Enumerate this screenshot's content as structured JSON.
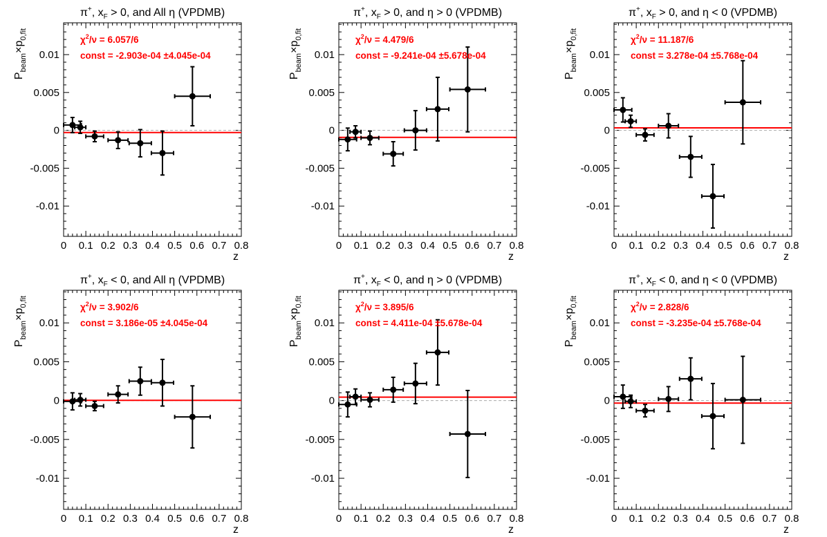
{
  "chart_data": [
    {
      "type": "scatter",
      "title": "π⁺, x_F > 0, and All  η (VPDMB)",
      "title_parts": {
        "pre": "π",
        "sup": "+",
        "mid": ", x",
        "sub": "F",
        "post": " > 0, and All  η (VPDMB)"
      },
      "xlabel": "z",
      "ylabel_parts": {
        "p1": "P",
        "s1": "beam",
        "p2": "×p",
        "s2": "0,fit"
      },
      "xlim": [
        0,
        0.8
      ],
      "ylim": [
        -0.014,
        0.0142
      ],
      "xticks": [
        "0",
        "0.1",
        "0.2",
        "0.3",
        "0.4",
        "0.5",
        "0.6",
        "0.7",
        "0.8"
      ],
      "yticks": [
        "0.01",
        "0.005",
        "0",
        "-0.005",
        "-0.01"
      ],
      "fit_text": {
        "chi2": "χ²/ν = 6.057/6",
        "chi_head": "χ",
        "chi_sup": "2",
        "chi_tail": "/ν = 6.057/6",
        "const": "const = -2.903e-04  ±4.045e-04"
      },
      "fit_const": -0.0002903,
      "points": [
        {
          "x": 0.04,
          "y": 0.0007,
          "xerr": 0.04,
          "yerr": 0.001
        },
        {
          "x": 0.075,
          "y": 0.0004,
          "xerr": 0.025,
          "yerr": 0.0008
        },
        {
          "x": 0.14,
          "y": -0.0008,
          "xerr": 0.04,
          "yerr": 0.0007
        },
        {
          "x": 0.245,
          "y": -0.0013,
          "xerr": 0.045,
          "yerr": 0.0011
        },
        {
          "x": 0.345,
          "y": -0.0017,
          "xerr": 0.05,
          "yerr": 0.0018
        },
        {
          "x": 0.445,
          "y": -0.003,
          "xerr": 0.05,
          "yerr": 0.0029
        },
        {
          "x": 0.58,
          "y": 0.0045,
          "xerr": 0.08,
          "yerr": 0.0039
        }
      ]
    },
    {
      "type": "scatter",
      "title": "π⁺, x_F > 0, and η > 0 (VPDMB)",
      "title_parts": {
        "pre": "π",
        "sup": "+",
        "mid": ", x",
        "sub": "F",
        "post": " > 0, and η > 0 (VPDMB)"
      },
      "xlabel": "z",
      "ylabel_parts": {
        "p1": "P",
        "s1": "beam",
        "p2": "×p",
        "s2": "0,fit"
      },
      "xlim": [
        0,
        0.8
      ],
      "ylim": [
        -0.014,
        0.0142
      ],
      "xticks": [
        "0",
        "0.1",
        "0.2",
        "0.3",
        "0.4",
        "0.5",
        "0.6",
        "0.7",
        "0.8"
      ],
      "yticks": [
        "0.01",
        "0.005",
        "0",
        "-0.005",
        "-0.01"
      ],
      "fit_text": {
        "chi2": "χ²/ν = 4.479/6",
        "chi_head": "χ",
        "chi_sup": "2",
        "chi_tail": "/ν = 4.479/6",
        "const": "const = -9.241e-04  ±5.678e-04"
      },
      "fit_const": -0.0009241,
      "points": [
        {
          "x": 0.04,
          "y": -0.0012,
          "xerr": 0.04,
          "yerr": 0.0015
        },
        {
          "x": 0.075,
          "y": -0.0002,
          "xerr": 0.025,
          "yerr": 0.0008
        },
        {
          "x": 0.14,
          "y": -0.001,
          "xerr": 0.04,
          "yerr": 0.0009
        },
        {
          "x": 0.245,
          "y": -0.0031,
          "xerr": 0.045,
          "yerr": 0.0016
        },
        {
          "x": 0.345,
          "y": 0.0,
          "xerr": 0.05,
          "yerr": 0.0026
        },
        {
          "x": 0.445,
          "y": 0.0028,
          "xerr": 0.05,
          "yerr": 0.0042
        },
        {
          "x": 0.58,
          "y": 0.0054,
          "xerr": 0.08,
          "yerr": 0.0056
        }
      ]
    },
    {
      "type": "scatter",
      "title": "π⁺, x_F > 0, and η < 0 (VPDMB)",
      "title_parts": {
        "pre": "π",
        "sup": "+",
        "mid": ", x",
        "sub": "F",
        "post": " > 0, and η < 0 (VPDMB)"
      },
      "xlabel": "z",
      "ylabel_parts": {
        "p1": "P",
        "s1": "beam",
        "p2": "×p",
        "s2": "0,fit"
      },
      "xlim": [
        0,
        0.8
      ],
      "ylim": [
        -0.014,
        0.0142
      ],
      "xticks": [
        "0",
        "0.1",
        "0.2",
        "0.3",
        "0.4",
        "0.5",
        "0.6",
        "0.7",
        "0.8"
      ],
      "yticks": [
        "0.01",
        "0.005",
        "0",
        "-0.005",
        "-0.01"
      ],
      "fit_text": {
        "chi2": "χ²/ν = 11.187/6",
        "chi_head": "χ",
        "chi_sup": "2",
        "chi_tail": "/ν = 11.187/6",
        "const": "const = 3.278e-04  ±5.768e-04"
      },
      "fit_const": 0.0003278,
      "points": [
        {
          "x": 0.04,
          "y": 0.0027,
          "xerr": 0.04,
          "yerr": 0.0016
        },
        {
          "x": 0.075,
          "y": 0.0012,
          "xerr": 0.025,
          "yerr": 0.0008
        },
        {
          "x": 0.14,
          "y": -0.0006,
          "xerr": 0.04,
          "yerr": 0.0008
        },
        {
          "x": 0.245,
          "y": 0.0006,
          "xerr": 0.045,
          "yerr": 0.0016
        },
        {
          "x": 0.345,
          "y": -0.0035,
          "xerr": 0.05,
          "yerr": 0.0027
        },
        {
          "x": 0.445,
          "y": -0.0087,
          "xerr": 0.05,
          "yerr": 0.0042
        },
        {
          "x": 0.58,
          "y": 0.0037,
          "xerr": 0.08,
          "yerr": 0.0055
        }
      ]
    },
    {
      "type": "scatter",
      "title": "π⁺, x_F < 0, and All  η (VPDMB)",
      "title_parts": {
        "pre": "π",
        "sup": "+",
        "mid": ", x",
        "sub": "F",
        "post": " < 0, and All  η (VPDMB)"
      },
      "xlabel": "z",
      "ylabel_parts": {
        "p1": "P",
        "s1": "beam",
        "p2": "×p",
        "s2": "0,fit"
      },
      "xlim": [
        0,
        0.8
      ],
      "ylim": [
        -0.014,
        0.0142
      ],
      "xticks": [
        "0",
        "0.1",
        "0.2",
        "0.3",
        "0.4",
        "0.5",
        "0.6",
        "0.7",
        "0.8"
      ],
      "yticks": [
        "0.01",
        "0.005",
        "0",
        "-0.005",
        "-0.01"
      ],
      "fit_text": {
        "chi2": "χ²/ν = 3.902/6",
        "chi_head": "χ",
        "chi_sup": "2",
        "chi_tail": "/ν = 3.902/6",
        "const": "const = 3.186e-05  ±4.045e-04"
      },
      "fit_const": 3.186e-05,
      "points": [
        {
          "x": 0.04,
          "y": -0.0001,
          "xerr": 0.04,
          "yerr": 0.0011
        },
        {
          "x": 0.075,
          "y": 0.0001,
          "xerr": 0.025,
          "yerr": 0.0008
        },
        {
          "x": 0.14,
          "y": -0.0007,
          "xerr": 0.04,
          "yerr": 0.0006
        },
        {
          "x": 0.245,
          "y": 0.0008,
          "xerr": 0.045,
          "yerr": 0.0011
        },
        {
          "x": 0.345,
          "y": 0.0025,
          "xerr": 0.05,
          "yerr": 0.0018
        },
        {
          "x": 0.445,
          "y": 0.0023,
          "xerr": 0.05,
          "yerr": 0.003
        },
        {
          "x": 0.58,
          "y": -0.0021,
          "xerr": 0.08,
          "yerr": 0.004
        }
      ]
    },
    {
      "type": "scatter",
      "title": "π⁺, x_F < 0, and η > 0 (VPDMB)",
      "title_parts": {
        "pre": "π",
        "sup": "+",
        "mid": ", x",
        "sub": "F",
        "post": " < 0, and η > 0 (VPDMB)"
      },
      "xlabel": "z",
      "ylabel_parts": {
        "p1": "P",
        "s1": "beam",
        "p2": "×p",
        "s2": "0,fit"
      },
      "xlim": [
        0,
        0.8
      ],
      "ylim": [
        -0.014,
        0.0142
      ],
      "xticks": [
        "0",
        "0.1",
        "0.2",
        "0.3",
        "0.4",
        "0.5",
        "0.6",
        "0.7",
        "0.8"
      ],
      "yticks": [
        "0.01",
        "0.005",
        "0",
        "-0.005",
        "-0.01"
      ],
      "fit_text": {
        "chi2": "χ²/ν = 3.895/6",
        "chi_head": "χ",
        "chi_sup": "2",
        "chi_tail": "/ν = 3.895/6",
        "const": "const = 4.411e-04  ±5.678e-04"
      },
      "fit_const": 0.0004411,
      "points": [
        {
          "x": 0.04,
          "y": -0.0005,
          "xerr": 0.04,
          "yerr": 0.0016
        },
        {
          "x": 0.075,
          "y": 0.0005,
          "xerr": 0.025,
          "yerr": 0.001
        },
        {
          "x": 0.14,
          "y": 0.0001,
          "xerr": 0.04,
          "yerr": 0.0009
        },
        {
          "x": 0.245,
          "y": 0.0014,
          "xerr": 0.045,
          "yerr": 0.0016
        },
        {
          "x": 0.345,
          "y": 0.0022,
          "xerr": 0.05,
          "yerr": 0.0026
        },
        {
          "x": 0.445,
          "y": 0.0062,
          "xerr": 0.05,
          "yerr": 0.0042
        },
        {
          "x": 0.58,
          "y": -0.0043,
          "xerr": 0.08,
          "yerr": 0.0056
        }
      ]
    },
    {
      "type": "scatter",
      "title": "π⁺, x_F < 0, and η < 0 (VPDMB)",
      "title_parts": {
        "pre": "π",
        "sup": "+",
        "mid": ", x",
        "sub": "F",
        "post": " < 0, and η < 0 (VPDMB)"
      },
      "xlabel": "z",
      "ylabel_parts": {
        "p1": "P",
        "s1": "beam",
        "p2": "×p",
        "s2": "0,fit"
      },
      "xlim": [
        0,
        0.8
      ],
      "ylim": [
        -0.014,
        0.0142
      ],
      "xticks": [
        "0",
        "0.1",
        "0.2",
        "0.3",
        "0.4",
        "0.5",
        "0.6",
        "0.7",
        "0.8"
      ],
      "yticks": [
        "0.01",
        "0.005",
        "0",
        "-0.005",
        "-0.01"
      ],
      "fit_text": {
        "chi2": "χ²/ν = 2.828/6",
        "chi_head": "χ",
        "chi_sup": "2",
        "chi_tail": "/ν = 2.828/6",
        "const": "const = -3.235e-04  ±5.768e-04"
      },
      "fit_const": -0.0003235,
      "points": [
        {
          "x": 0.04,
          "y": 0.0005,
          "xerr": 0.04,
          "yerr": 0.0015
        },
        {
          "x": 0.075,
          "y": -0.0001,
          "xerr": 0.025,
          "yerr": 0.0008
        },
        {
          "x": 0.14,
          "y": -0.0013,
          "xerr": 0.04,
          "yerr": 0.0008
        },
        {
          "x": 0.245,
          "y": 0.0002,
          "xerr": 0.045,
          "yerr": 0.0016
        },
        {
          "x": 0.345,
          "y": 0.0028,
          "xerr": 0.05,
          "yerr": 0.0027
        },
        {
          "x": 0.445,
          "y": -0.002,
          "xerr": 0.05,
          "yerr": 0.0042
        },
        {
          "x": 0.58,
          "y": 0.0001,
          "xerr": 0.08,
          "yerr": 0.0056
        }
      ]
    }
  ],
  "colors": {
    "fit_line": "#ff0000",
    "fit_text": "#ff0000",
    "zero_line": "#aaaaaa",
    "marker": "#000000",
    "axis": "#000000"
  }
}
